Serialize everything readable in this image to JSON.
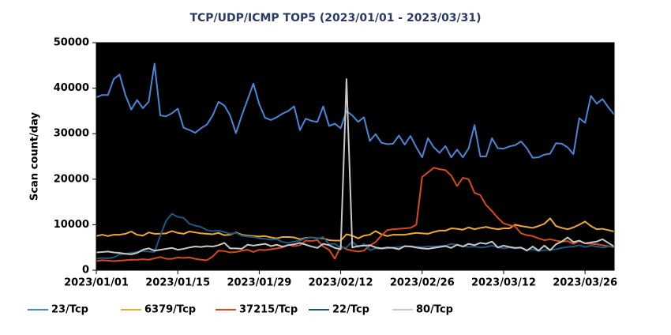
{
  "chart_data": {
    "type": "line",
    "title": "TCP/UDP/ICMP TOP5 (2023/01/01 - 2023/03/31)",
    "y_label": "Scan count/day",
    "x": [
      "2023/01/01",
      "2023/01/02",
      "2023/01/03",
      "2023/01/04",
      "2023/01/05",
      "2023/01/06",
      "2023/01/07",
      "2023/01/08",
      "2023/01/09",
      "2023/01/10",
      "2023/01/11",
      "2023/01/12",
      "2023/01/13",
      "2023/01/14",
      "2023/01/15",
      "2023/01/16",
      "2023/01/17",
      "2023/01/18",
      "2023/01/19",
      "2023/01/20",
      "2023/01/21",
      "2023/01/22",
      "2023/01/23",
      "2023/01/24",
      "2023/01/25",
      "2023/01/26",
      "2023/01/27",
      "2023/01/28",
      "2023/01/29",
      "2023/01/30",
      "2023/01/31",
      "2023/02/01",
      "2023/02/02",
      "2023/02/03",
      "2023/02/04",
      "2023/02/05",
      "2023/02/06",
      "2023/02/07",
      "2023/02/08",
      "2023/02/09",
      "2023/02/10",
      "2023/02/11",
      "2023/02/12",
      "2023/02/13",
      "2023/02/14",
      "2023/02/15",
      "2023/02/16",
      "2023/02/17",
      "2023/02/18",
      "2023/02/19",
      "2023/02/20",
      "2023/02/21",
      "2023/02/22",
      "2023/02/23",
      "2023/02/24",
      "2023/02/25",
      "2023/02/26",
      "2023/02/27",
      "2023/02/28",
      "2023/03/01",
      "2023/03/02",
      "2023/03/03",
      "2023/03/04",
      "2023/03/05",
      "2023/03/06",
      "2023/03/07",
      "2023/03/08",
      "2023/03/09",
      "2023/03/10",
      "2023/03/11",
      "2023/03/12",
      "2023/03/13",
      "2023/03/14",
      "2023/03/15",
      "2023/03/16",
      "2023/03/17",
      "2023/03/18",
      "2023/03/19",
      "2023/03/20",
      "2023/03/21",
      "2023/03/22",
      "2023/03/23",
      "2023/03/24",
      "2023/03/25",
      "2023/03/26",
      "2023/03/27",
      "2023/03/28",
      "2023/03/29",
      "2023/03/30",
      "2023/03/31"
    ],
    "xlim": [
      "2023/01/01",
      "2023/03/31"
    ],
    "xticks": [
      "2023/01/01",
      "2023/01/15",
      "2023/01/29",
      "2023/02/12",
      "2023/02/26",
      "2023/03/12",
      "2023/03/26"
    ],
    "ylim": [
      0,
      50000
    ],
    "yticks": [
      0,
      10000,
      20000,
      30000,
      40000,
      50000
    ],
    "background": "#000000",
    "series": [
      {
        "name": "23/Tcp",
        "color": "#4a86d8",
        "values": [
          38000,
          38500,
          38500,
          42000,
          43000,
          38500,
          35300,
          37400,
          35600,
          37000,
          45400,
          34000,
          33800,
          34500,
          35500,
          31300,
          30800,
          30200,
          31200,
          32000,
          34000,
          37000,
          36200,
          34000,
          30100,
          34000,
          37500,
          41000,
          36500,
          33500,
          33000,
          33600,
          34400,
          35000,
          36000,
          30800,
          33300,
          32800,
          32600,
          36000,
          31700,
          32200,
          31200,
          35000,
          34000,
          32600,
          33600,
          28400,
          29900,
          28000,
          27700,
          27800,
          29600,
          27600,
          29500,
          27000,
          24800,
          29000,
          27000,
          25800,
          27300,
          24800,
          26500,
          24800,
          26800,
          31900,
          25000,
          25000,
          29000,
          26800,
          26700,
          27200,
          27500,
          28300,
          26800,
          24700,
          24800,
          25400,
          25600,
          27900,
          27800,
          27000,
          25500,
          33400,
          32400,
          38300,
          36600,
          37600,
          35800,
          34200
        ]
      },
      {
        "name": "6379/Tcp",
        "color": "#f0a830",
        "values": [
          7500,
          7800,
          7500,
          7800,
          7800,
          8000,
          8500,
          7800,
          7600,
          8300,
          8000,
          8000,
          8100,
          8600,
          8200,
          8000,
          8500,
          8300,
          8100,
          8000,
          7900,
          8200,
          7700,
          7800,
          8300,
          7800,
          7600,
          7500,
          7400,
          7500,
          7200,
          7000,
          7300,
          7300,
          7200,
          6800,
          7100,
          7200,
          7000,
          7000,
          6600,
          6500,
          6500,
          7900,
          7600,
          7000,
          7600,
          7800,
          8600,
          7900,
          7500,
          7800,
          7800,
          7800,
          8000,
          8200,
          8100,
          8000,
          8400,
          8700,
          8700,
          9200,
          9100,
          8900,
          9400,
          9000,
          9300,
          9500,
          9200,
          9000,
          9200,
          9200,
          10000,
          9700,
          9500,
          9300,
          9700,
          10200,
          11400,
          9700,
          9300,
          9000,
          9400,
          10000,
          10700,
          9700,
          9000,
          9100,
          8800,
          8500
        ]
      },
      {
        "name": "37215/Tcp",
        "color": "#d84a1b",
        "values": [
          2000,
          2200,
          2100,
          2000,
          2100,
          2200,
          2300,
          2300,
          2400,
          2300,
          2600,
          2900,
          2500,
          2500,
          2800,
          2700,
          2800,
          2500,
          2300,
          2200,
          3000,
          4300,
          4200,
          3900,
          4000,
          4300,
          4500,
          4000,
          4500,
          4400,
          4600,
          4800,
          5000,
          5600,
          5300,
          5500,
          6500,
          6400,
          6600,
          5200,
          4500,
          2500,
          5300,
          4600,
          4300,
          4100,
          4300,
          5400,
          6200,
          7600,
          8800,
          9000,
          9100,
          9200,
          9300,
          10000,
          20500,
          21500,
          22500,
          22200,
          22000,
          20800,
          18500,
          20300,
          20000,
          17000,
          16500,
          14300,
          13000,
          11500,
          10300,
          9900,
          9600,
          8100,
          7700,
          7500,
          7000,
          6600,
          6800,
          6500,
          6300,
          6400,
          5800,
          6400,
          5900,
          5800,
          5700,
          5500,
          5300,
          5000
        ]
      },
      {
        "name": "22/Tcp",
        "color": "#1a5a80",
        "values": [
          2500,
          2700,
          2600,
          2800,
          3500,
          3600,
          3800,
          4000,
          4200,
          4100,
          4000,
          7600,
          10900,
          12400,
          11700,
          11500,
          10200,
          9800,
          9500,
          8800,
          8600,
          8700,
          8400,
          8000,
          8200,
          7600,
          7400,
          7300,
          7000,
          6900,
          6700,
          6800,
          6200,
          6000,
          6300,
          6500,
          7000,
          7200,
          6900,
          7300,
          5700,
          5800,
          4900,
          5000,
          6300,
          5100,
          5800,
          4400,
          4800,
          4700,
          4800,
          5000,
          5100,
          5200,
          5300,
          5100,
          5100,
          5200,
          5200,
          5300,
          5400,
          5800,
          5600,
          5300,
          5100,
          5200,
          5000,
          5100,
          5400,
          5000,
          4800,
          5000,
          4800,
          4900,
          4500,
          4600,
          4200,
          4400,
          4500,
          4600,
          4900,
          5100,
          5200,
          5500,
          5100,
          5400,
          5200,
          5000,
          5200,
          5300
        ]
      },
      {
        "name": "80/Tcp",
        "color": "#c8c8c8",
        "values": [
          3900,
          4000,
          4100,
          3900,
          3800,
          3600,
          3500,
          3800,
          4500,
          4800,
          4300,
          4500,
          4700,
          4900,
          4500,
          4700,
          5000,
          5200,
          5100,
          5300,
          5200,
          5500,
          6000,
          4800,
          4800,
          4700,
          5600,
          5400,
          5600,
          5800,
          5300,
          5600,
          5200,
          5500,
          5700,
          6000,
          5600,
          5200,
          4900,
          5800,
          5500,
          4900,
          4600,
          42000,
          5000,
          5300,
          5400,
          5500,
          5000,
          4800,
          5000,
          4900,
          4600,
          5300,
          5200,
          5000,
          4800,
          4700,
          4900,
          5100,
          5300,
          4900,
          5600,
          5200,
          5800,
          5500,
          6000,
          5800,
          6300,
          5000,
          5400,
          5100,
          4900,
          5000,
          4300,
          5200,
          4300,
          5400,
          4400,
          5700,
          6300,
          7200,
          6200,
          6500,
          5900,
          6100,
          6300,
          6800,
          6000,
          5200
        ]
      }
    ]
  }
}
